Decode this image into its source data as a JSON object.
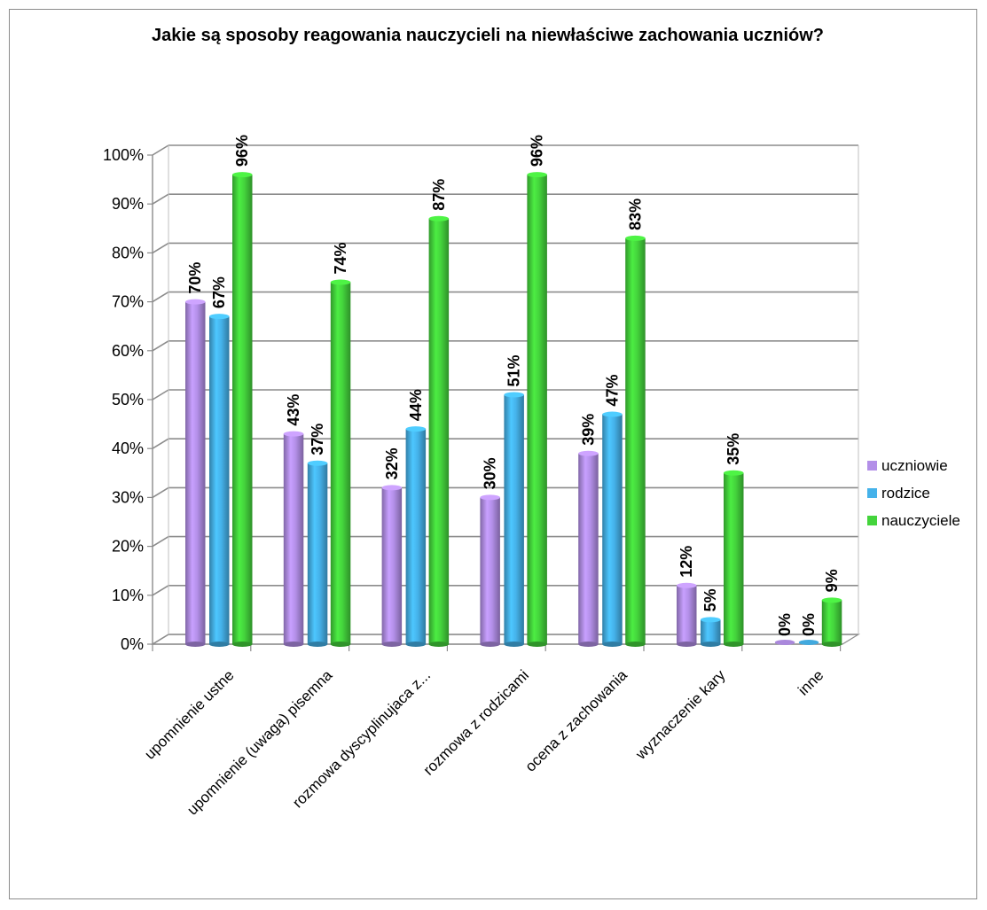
{
  "chart_data": {
    "type": "bar",
    "title": "Jakie są sposoby reagowania nauczycieli na niewłaściwe zachowania uczniów?",
    "categories": [
      "upomnienie ustne",
      "upomnienie (uwaga) pisemna",
      "rozmowa dyscyplinujaca z...",
      "rozmowa z rodzicami",
      "ocena z zachowania",
      "wyznaczenie kary",
      "inne"
    ],
    "series": [
      {
        "name": "uczniowie",
        "color": "#b38fe8",
        "values": [
          70,
          43,
          32,
          30,
          39,
          12,
          0
        ],
        "labels": [
          "70%",
          "43%",
          "32%",
          "30%",
          "39%",
          "12%",
          "0%"
        ]
      },
      {
        "name": "rodzice",
        "color": "#45b2ea",
        "values": [
          67,
          37,
          44,
          51,
          47,
          5,
          0
        ],
        "labels": [
          "67%",
          "37%",
          "44%",
          "51%",
          "47%",
          "5%",
          "0%"
        ]
      },
      {
        "name": "nauczyciele",
        "color": "#44d43c",
        "values": [
          96,
          74,
          87,
          96,
          83,
          35,
          9
        ],
        "labels": [
          "96%",
          "74%",
          "87%",
          "96%",
          "83%",
          "35%",
          "9%"
        ]
      }
    ],
    "ylim": [
      0,
      100
    ],
    "yticks": [
      "0%",
      "10%",
      "20%",
      "30%",
      "40%",
      "50%",
      "60%",
      "70%",
      "80%",
      "90%",
      "100%"
    ],
    "grid": true,
    "legend_position": "right"
  }
}
